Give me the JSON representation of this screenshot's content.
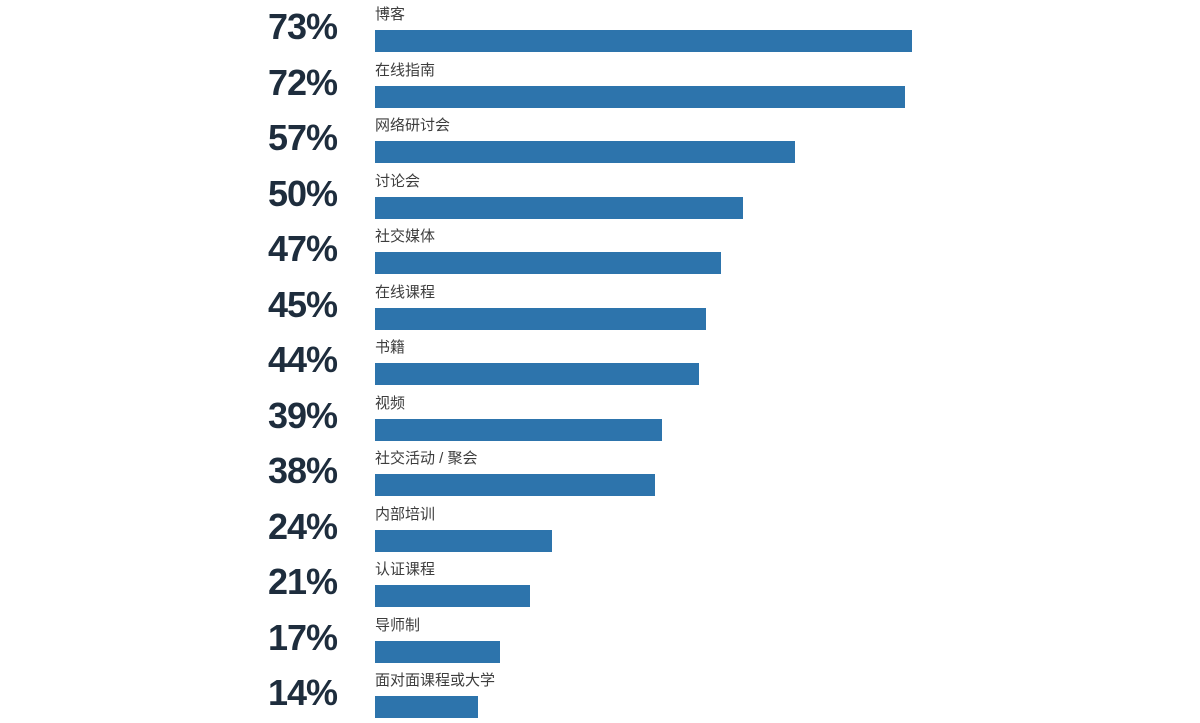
{
  "chart_data": {
    "type": "bar",
    "orientation": "horizontal",
    "title": "",
    "xlabel": "",
    "ylabel": "",
    "categories": [
      "博客",
      "在线指南",
      "网络研讨会",
      "讨论会",
      "社交媒体",
      "在线课程",
      "书籍",
      "视频",
      "社交活动 / 聚会",
      "内部培训",
      "认证课程",
      "导师制",
      "面对面课程或大学"
    ],
    "values": [
      73,
      72,
      57,
      50,
      47,
      45,
      44,
      39,
      38,
      24,
      21,
      17,
      14
    ],
    "value_labels": [
      "73%",
      "72%",
      "57%",
      "50%",
      "47%",
      "45%",
      "44%",
      "39%",
      "38%",
      "24%",
      "21%",
      "17%",
      "14%"
    ],
    "xlim": [
      0,
      100
    ],
    "grid": false,
    "legend": false,
    "colors": {
      "bar": "#2D74AC",
      "value_text": "#1E2D3D",
      "category_text": "#3D3D3D",
      "background": "#FFFFFF"
    }
  }
}
